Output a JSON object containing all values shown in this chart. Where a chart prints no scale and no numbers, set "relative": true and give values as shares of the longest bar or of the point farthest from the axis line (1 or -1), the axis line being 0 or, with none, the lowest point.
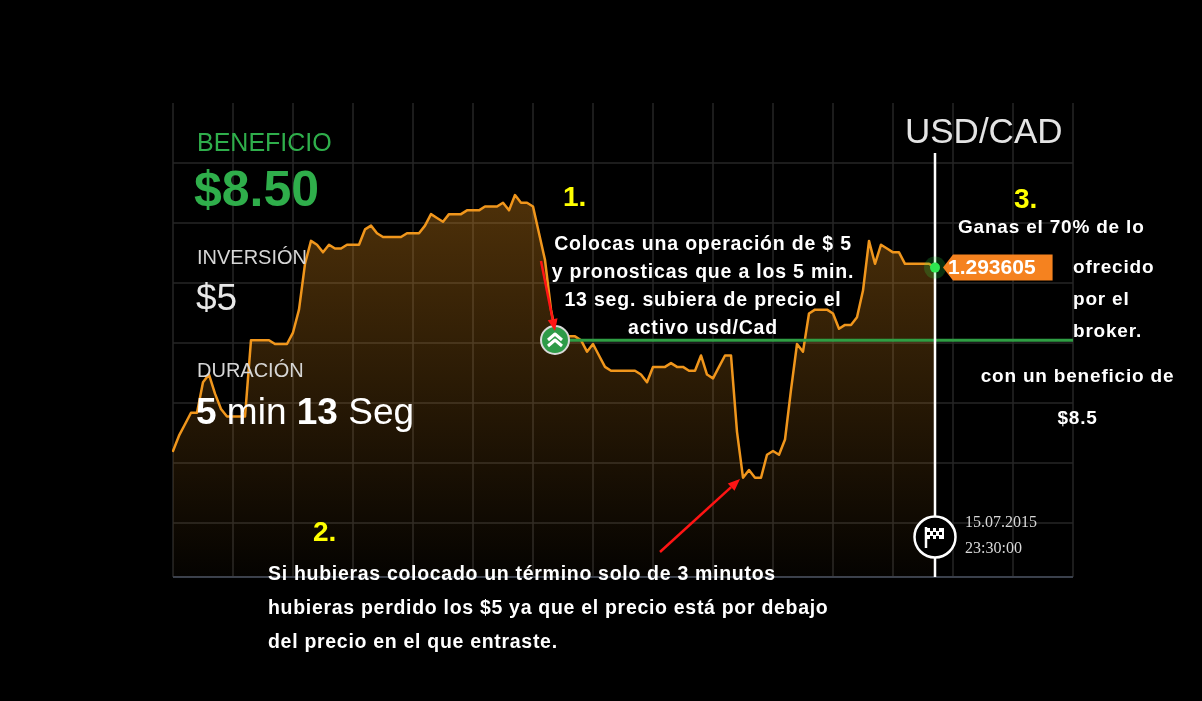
{
  "chart_data": {
    "type": "area",
    "title": "USD/CAD",
    "relative": true,
    "grid": true,
    "tick_labels": false,
    "color": "#f0961c",
    "categories": [
      null,
      null,
      null,
      null,
      null,
      null,
      null,
      null,
      null,
      null,
      null,
      null,
      null,
      null,
      null,
      null,
      null,
      null,
      null,
      null,
      null,
      null,
      null,
      null,
      null,
      null,
      null,
      null,
      null,
      null,
      null,
      null,
      null,
      null,
      null,
      null,
      null,
      null,
      null,
      null,
      null,
      null,
      null,
      null,
      null,
      null,
      null,
      null,
      null,
      null,
      null,
      null,
      null,
      null,
      null,
      null,
      null,
      null,
      null,
      null,
      null,
      null,
      null,
      null,
      null,
      null,
      null,
      null,
      null,
      null,
      null,
      null,
      null,
      null,
      null,
      null,
      null,
      null,
      null,
      null,
      null,
      null,
      null,
      null,
      null,
      null,
      null,
      null,
      null,
      null,
      null,
      null,
      null,
      null,
      null,
      null,
      null,
      null,
      null,
      null,
      null,
      null,
      null,
      null,
      null,
      null,
      null,
      null,
      null,
      null,
      null,
      null,
      null,
      null,
      null,
      null,
      null,
      null,
      null,
      null,
      null,
      null,
      null,
      null,
      null,
      null,
      null,
      null,
      null,
      null,
      null,
      null,
      null,
      null,
      null,
      null,
      null,
      null,
      null,
      null,
      null,
      null,
      null,
      null,
      null,
      null,
      null,
      null,
      null,
      null,
      null
    ],
    "values": [
      0.33,
      0.37,
      0.4,
      0.43,
      0.43,
      0.51,
      0.53,
      0.48,
      0.44,
      0.42,
      0.42,
      0.42,
      0.42,
      0.62,
      0.62,
      0.62,
      0.62,
      0.61,
      0.61,
      0.61,
      0.64,
      0.7,
      0.82,
      0.88,
      0.87,
      0.85,
      0.87,
      0.86,
      0.86,
      0.87,
      0.87,
      0.87,
      0.91,
      0.92,
      0.9,
      0.89,
      0.89,
      0.89,
      0.89,
      0.9,
      0.9,
      0.9,
      0.92,
      0.95,
      0.94,
      0.93,
      0.95,
      0.95,
      0.95,
      0.96,
      0.96,
      0.96,
      0.97,
      0.97,
      0.97,
      0.98,
      0.96,
      1.0,
      0.98,
      0.98,
      0.97,
      0.9,
      0.83,
      0.7,
      0.62,
      0.62,
      0.63,
      0.63,
      0.62,
      0.59,
      0.61,
      0.58,
      0.55,
      0.54,
      0.54,
      0.54,
      0.54,
      0.54,
      0.53,
      0.51,
      0.55,
      0.55,
      0.55,
      0.56,
      0.55,
      0.55,
      0.54,
      0.54,
      0.58,
      0.53,
      0.52,
      0.55,
      0.58,
      0.58,
      0.38,
      0.26,
      0.28,
      0.26,
      0.26,
      0.32,
      0.33,
      0.32,
      0.36,
      0.49,
      0.61,
      0.59,
      0.69,
      0.7,
      0.7,
      0.7,
      0.69,
      0.65,
      0.66,
      0.66,
      0.68,
      0.75,
      0.88,
      0.82,
      0.87,
      0.86,
      0.85,
      0.85,
      0.82,
      0.82,
      0.82,
      0.82,
      0.82,
      0.81,
      null,
      null,
      null,
      null,
      null,
      null,
      null,
      null,
      null,
      null,
      null,
      null,
      null,
      null,
      null,
      null,
      null,
      null,
      null,
      null,
      null,
      null,
      null
    ],
    "ref_lines": [
      {
        "axis": "y",
        "value": 0.62,
        "color": "#2f9e44"
      },
      {
        "axis": "x",
        "label": "15.07.2015 23:30:00",
        "color": "#ffffff"
      }
    ],
    "annotations": [
      "BENEFICIO",
      "$8.50",
      "INVERSIÓN",
      "$5",
      "DURACIÓN",
      "5 min 13 Seg",
      "1.",
      "Colocas una operación de $ 5 y pronosticas que a los 5 min. 13 seg. subiera de precio el activo usd/Cad",
      "2.",
      "Si hubieras colocado un término solo de 3 minutos hubieras perdido los $5 ya que el precio está por debajo del precio en el que entraste.",
      "3.",
      "Ganas el 70% de lo",
      "ofrecido por el broker.",
      "con un beneficio de $8.5",
      "1.293605"
    ]
  }
}
